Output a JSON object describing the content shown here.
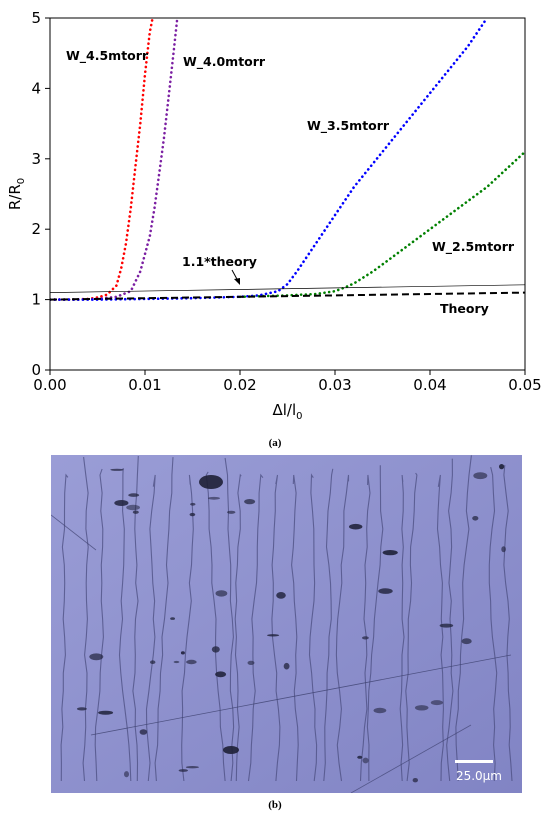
{
  "chart_data": {
    "type": "line",
    "xlabel": "Δl/l",
    "xlabel_sub": "0",
    "ylabel": "R/R",
    "ylabel_sub": "0",
    "xlim": [
      0,
      0.05
    ],
    "ylim": [
      0,
      5
    ],
    "x_ticks": [
      "0.00",
      "0.01",
      "0.02",
      "0.03",
      "0.04",
      "0.05"
    ],
    "y_ticks": [
      "0",
      "1",
      "2",
      "3",
      "4",
      "5"
    ],
    "grid": false,
    "legend": "none",
    "series": [
      {
        "name": "W_4.5mtorr",
        "color": "#ff0000",
        "style": "dotted",
        "points": [
          [
            0,
            1.0
          ],
          [
            0.002,
            1.0
          ],
          [
            0.004,
            1.01
          ],
          [
            0.005,
            1.03
          ],
          [
            0.006,
            1.07
          ],
          [
            0.007,
            1.2
          ],
          [
            0.0075,
            1.45
          ],
          [
            0.008,
            1.8
          ],
          [
            0.0085,
            2.3
          ],
          [
            0.009,
            2.9
          ],
          [
            0.0095,
            3.5
          ],
          [
            0.01,
            4.2
          ],
          [
            0.0105,
            4.8
          ],
          [
            0.0108,
            5.0
          ]
        ]
      },
      {
        "name": "W_4.0mtorr",
        "color": "#7b1fa2",
        "style": "dotted",
        "points": [
          [
            0,
            1.0
          ],
          [
            0.003,
            1.0
          ],
          [
            0.005,
            1.01
          ],
          [
            0.007,
            1.04
          ],
          [
            0.0085,
            1.12
          ],
          [
            0.0095,
            1.4
          ],
          [
            0.0105,
            1.9
          ],
          [
            0.011,
            2.3
          ],
          [
            0.0115,
            2.8
          ],
          [
            0.012,
            3.3
          ],
          [
            0.0125,
            3.9
          ],
          [
            0.013,
            4.5
          ],
          [
            0.0134,
            5.0
          ]
        ]
      },
      {
        "name": "W_3.5mtorr",
        "color": "#0000ff",
        "style": "dotted",
        "points": [
          [
            0,
            1.0
          ],
          [
            0.005,
            1.0
          ],
          [
            0.01,
            1.01
          ],
          [
            0.015,
            1.02
          ],
          [
            0.02,
            1.04
          ],
          [
            0.022,
            1.06
          ],
          [
            0.024,
            1.12
          ],
          [
            0.025,
            1.22
          ],
          [
            0.026,
            1.4
          ],
          [
            0.028,
            1.8
          ],
          [
            0.03,
            2.2
          ],
          [
            0.032,
            2.6
          ],
          [
            0.035,
            3.1
          ],
          [
            0.038,
            3.6
          ],
          [
            0.041,
            4.1
          ],
          [
            0.044,
            4.6
          ],
          [
            0.046,
            5.0
          ]
        ]
      },
      {
        "name": "W_2.5mtorr",
        "color": "#008000",
        "style": "dotted",
        "points": [
          [
            0.02,
            1.04
          ],
          [
            0.025,
            1.06
          ],
          [
            0.028,
            1.08
          ],
          [
            0.03,
            1.12
          ],
          [
            0.031,
            1.17
          ],
          [
            0.032,
            1.23
          ],
          [
            0.034,
            1.4
          ],
          [
            0.036,
            1.6
          ],
          [
            0.038,
            1.8
          ],
          [
            0.04,
            2.0
          ],
          [
            0.042,
            2.2
          ],
          [
            0.044,
            2.4
          ],
          [
            0.046,
            2.6
          ],
          [
            0.048,
            2.85
          ],
          [
            0.05,
            3.1
          ]
        ]
      },
      {
        "name": "1.1*theory",
        "color": "#000000",
        "style": "thin",
        "points": [
          [
            0,
            1.1
          ],
          [
            0.05,
            1.21
          ]
        ]
      },
      {
        "name": "Theory",
        "color": "#000000",
        "style": "dashed",
        "points": [
          [
            0,
            1.0
          ],
          [
            0.05,
            1.1
          ]
        ]
      }
    ],
    "annotations": [
      {
        "text": "W_4.5mtorr",
        "color": "#000000"
      },
      {
        "text": "W_4.0mtorr",
        "color": "#000000"
      },
      {
        "text": "W_3.5mtorr",
        "color": "#000000"
      },
      {
        "text": "W_2.5mtorr",
        "color": "#000000"
      },
      {
        "text": "1.1*theory",
        "color": "#000000"
      },
      {
        "text": "Theory",
        "color": "#000000"
      }
    ]
  },
  "captions": {
    "a": "(a)",
    "b": "(b)"
  },
  "micrograph": {
    "scale_bar_label": "25.0μm",
    "background_color": "#8c8fcc"
  }
}
